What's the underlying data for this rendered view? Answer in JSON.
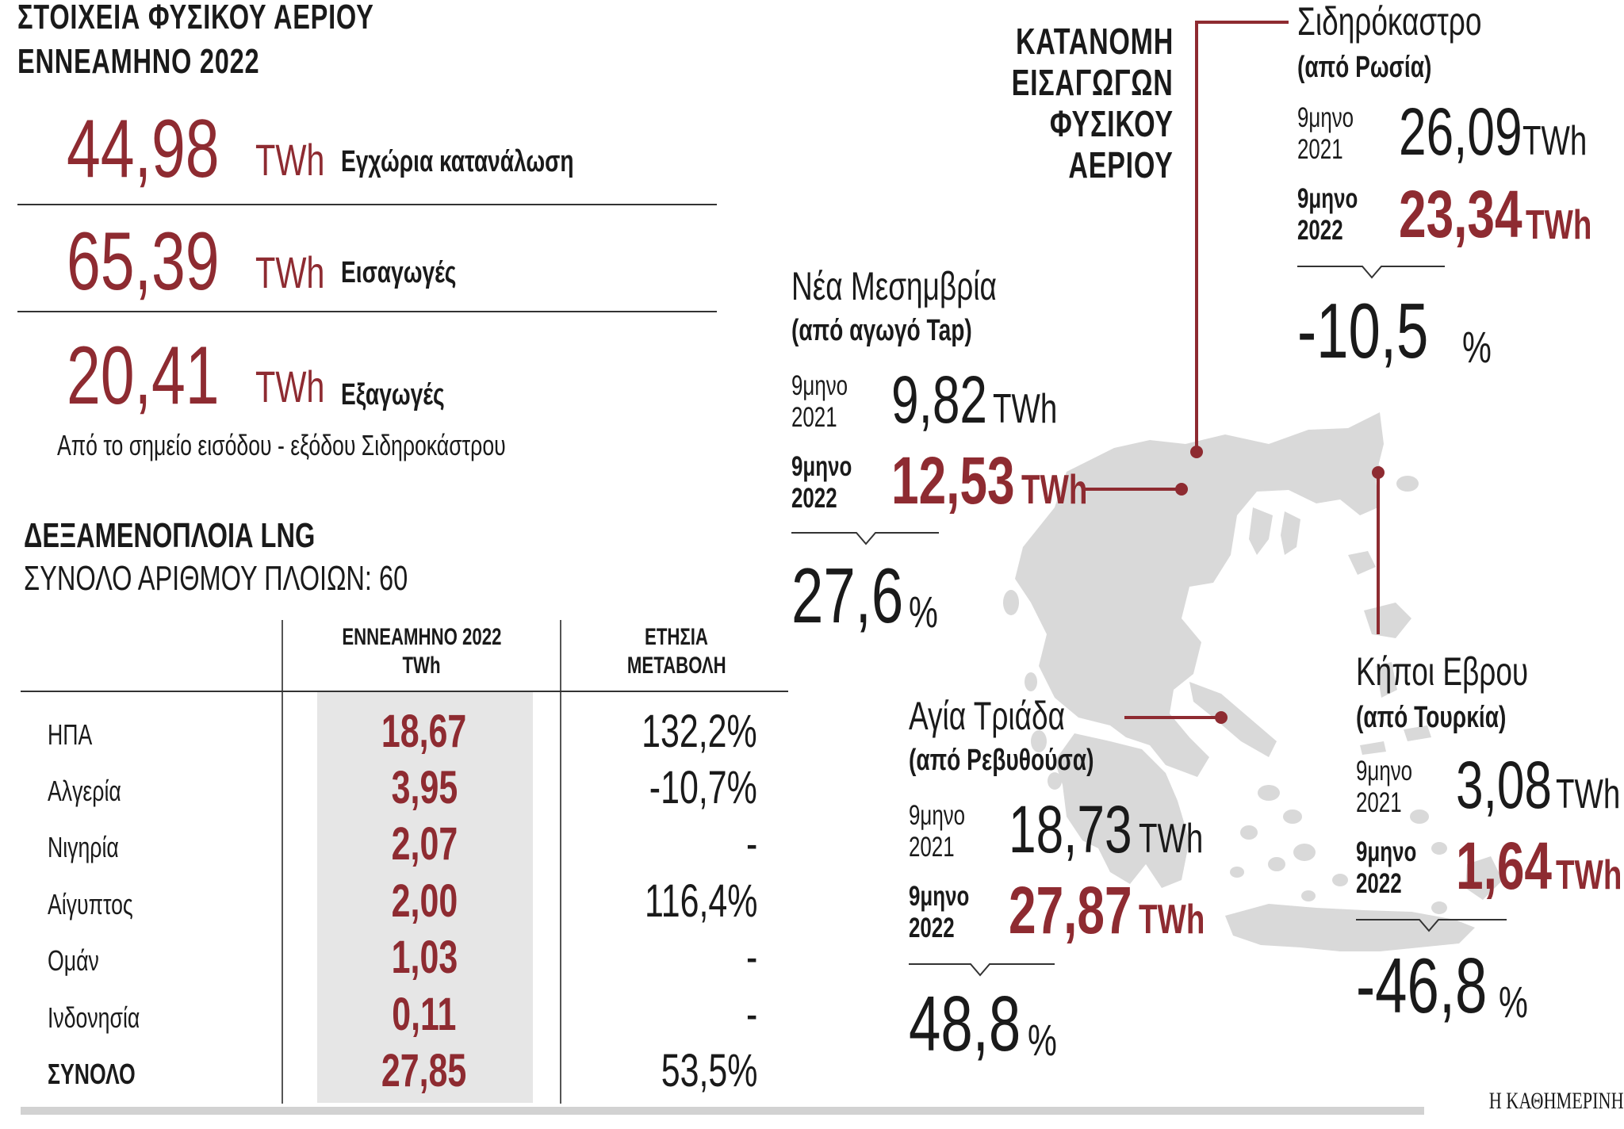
{
  "header": {
    "line1": "ΣΤΟΙΧΕΙΑ ΦΥΣΙΚΟΥ ΑΕΡΙΟΥ",
    "line2": "ΕΝΝΕΑΜΗΝΟ 2022"
  },
  "stats": [
    {
      "value": "44,98",
      "unit": "TWh",
      "label": "Εγχώρια κατανάλωση"
    },
    {
      "value": "65,39",
      "unit": "TWh",
      "label": "Εισαγωγές"
    },
    {
      "value": "20,41",
      "unit": "TWh",
      "label": "Εξαγωγές"
    }
  ],
  "exports_note": "Από το σημείο εισόδου - εξόδου Σιδηροκάστρου",
  "lng": {
    "title": "ΔΕΞΑΜΕΝΟΠΛΟΙΑ LNG",
    "subtitle": "ΣΥΝΟΛΟ ΑΡΙΘΜΟΥ ΠΛΟΙΩΝ: 60",
    "col1_line1": "ΕΝΝΕΑΜΗΝΟ 2022",
    "col1_line2": "TWh",
    "col2_line1": "ΕΤΗΣΙΑ",
    "col2_line2": "ΜΕΤΑΒΟΛΗ",
    "rows": [
      {
        "country": "ΗΠΑ",
        "twh": "18,67",
        "change": "132,2%"
      },
      {
        "country": "Αλγερία",
        "twh": "3,95",
        "change": "-10,7%"
      },
      {
        "country": "Νιγηρία",
        "twh": "2,07",
        "change": "-"
      },
      {
        "country": "Αίγυπτος",
        "twh": "2,00",
        "change": "116,4%"
      },
      {
        "country": "Ομάν",
        "twh": "1,03",
        "change": "-"
      },
      {
        "country": "Ινδονησία",
        "twh": "0,11",
        "change": "-"
      },
      {
        "country": "ΣΥΝΟΛΟ",
        "twh": "27,85",
        "change": "53,5%"
      }
    ]
  },
  "map_title": [
    "ΚΑΤΑΝΟΜΗ",
    "ΕΙΣΑΓΩΓΩΝ",
    "ΦΥΣΙΚΟΥ",
    "ΑΕΡΙΟΥ"
  ],
  "period_2021_a": "9μηνο",
  "period_2021_b": "2021",
  "period_2022_a": "9μηνο",
  "period_2022_b": "2022",
  "unit": "TWh",
  "pct_sign": "%",
  "stations": {
    "sidirokastro": {
      "name": "Σιδηρόκαστρο",
      "source": "(από Ρωσία)",
      "v2021": "26,09",
      "v2022": "23,34",
      "change": "-10,5"
    },
    "nea_mesimvria": {
      "name": "Νέα Μεσημβρία",
      "source": "(από αγωγό Tap)",
      "v2021": "9,82",
      "v2022": "12,53",
      "change": "27,6"
    },
    "agia_triada": {
      "name": "Αγία Τριάδα",
      "source": "(από Ρεβυθούσα)",
      "v2021": "18,73",
      "v2022": "27,87",
      "change": "48,8"
    },
    "kipoi": {
      "name": "Κήποι Εβρου",
      "source": "(από Τουρκία)",
      "v2021": "3,08",
      "v2022": "1,64",
      "change": "-46,8"
    }
  },
  "colors": {
    "accent": "#8e2b31",
    "map": "#d9d9d9",
    "table_band": "#e6e6e6"
  },
  "brand": "Η ΚΑΘΗΜΕΡΙΝΗ"
}
